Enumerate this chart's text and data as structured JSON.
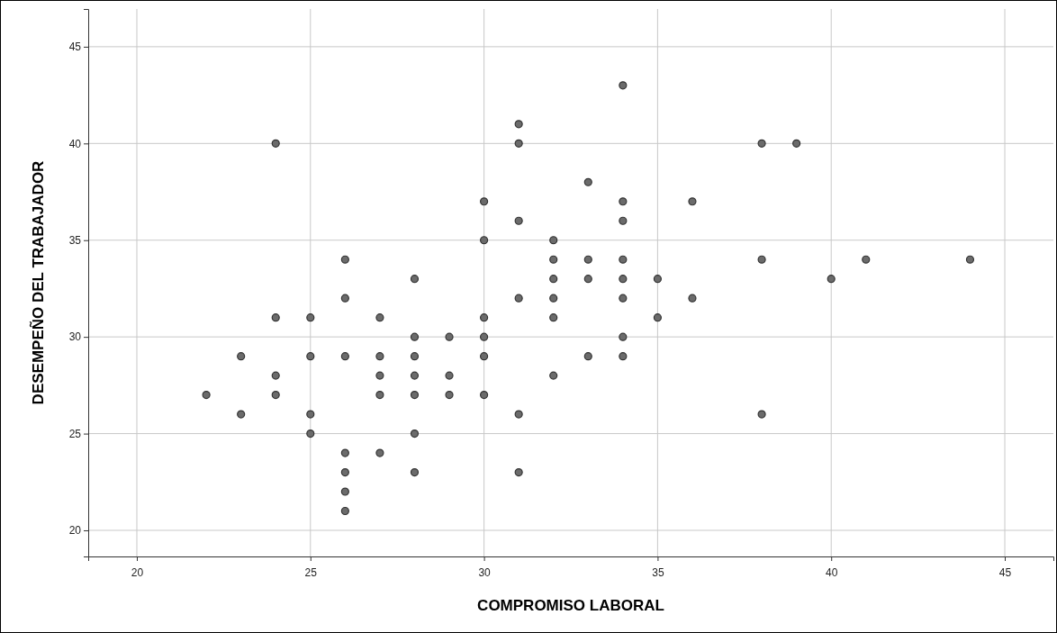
{
  "chart_data": {
    "type": "scatter",
    "xlabel": "COMPROMISO LABORAL",
    "ylabel": "DESEMPEÑO DEL TRABAJADOR",
    "x": [
      22,
      23,
      23,
      24,
      24,
      24,
      24,
      25,
      25,
      25,
      25,
      26,
      26,
      26,
      26,
      26,
      26,
      26,
      27,
      27,
      27,
      27,
      27,
      28,
      28,
      28,
      28,
      28,
      28,
      28,
      29,
      29,
      29,
      30,
      30,
      30,
      30,
      30,
      30,
      31,
      31,
      31,
      31,
      31,
      31,
      32,
      32,
      32,
      32,
      32,
      32,
      33,
      33,
      33,
      33,
      34,
      34,
      34,
      34,
      34,
      34,
      34,
      34,
      35,
      35,
      36,
      36,
      38,
      38,
      38,
      39,
      40,
      41,
      44
    ],
    "series": [
      {
        "color": "#6b6b6b",
        "values": [
          27,
          29,
          26,
          40,
          31,
          28,
          27,
          31,
          29,
          26,
          25,
          34,
          32,
          29,
          24,
          23,
          22,
          21,
          31,
          29,
          28,
          27,
          24,
          33,
          30,
          29,
          28,
          27,
          25,
          23,
          30,
          28,
          27,
          37,
          35,
          31,
          30,
          29,
          27,
          41,
          40,
          36,
          32,
          26,
          23,
          35,
          34,
          33,
          32,
          31,
          28,
          38,
          34,
          33,
          29,
          43,
          37,
          36,
          34,
          33,
          32,
          30,
          29,
          33,
          31,
          37,
          32,
          40,
          34,
          26,
          40,
          33,
          34,
          34
        ]
      }
    ],
    "xlim": [
      18.6,
      46.4
    ],
    "ylim": [
      18.65,
      46.95
    ],
    "xticks": [
      20,
      25,
      30,
      35,
      40,
      45
    ],
    "yticks": [
      20,
      25,
      30,
      35,
      40,
      45
    ],
    "grid": true,
    "marker": "circle"
  }
}
